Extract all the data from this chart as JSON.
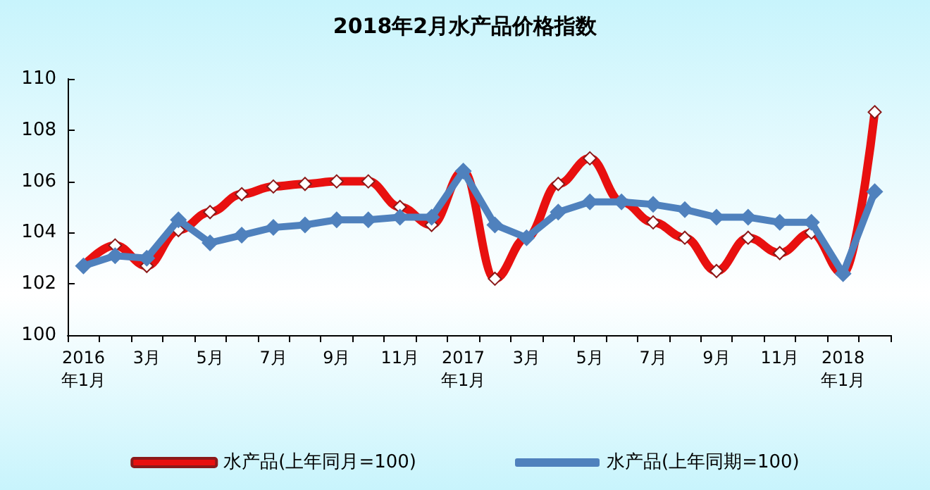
{
  "chart_data": {
    "type": "line",
    "title": "2018年2月水产品价格指数",
    "categories": [
      "2016\n年1月",
      null,
      "3月",
      null,
      "5月",
      null,
      "7月",
      null,
      "9月",
      null,
      "11月",
      null,
      "2017\n年1月",
      null,
      "3月",
      null,
      "5月",
      null,
      "7月",
      null,
      "9月",
      null,
      "11月",
      null,
      "2018\n年1月",
      null
    ],
    "series": [
      {
        "name": "水产品(上年同月=100)",
        "color": "#e8100f",
        "marker": "diamond",
        "values": [
          102.7,
          103.5,
          102.7,
          104.1,
          104.8,
          105.5,
          105.8,
          105.9,
          106.0,
          106.0,
          105.0,
          104.3,
          106.4,
          102.2,
          103.8,
          105.9,
          106.9,
          105.2,
          104.4,
          103.8,
          102.5,
          103.8,
          103.2,
          104.0,
          102.4,
          108.7
        ]
      },
      {
        "name": "水产品(上年同期=100)",
        "color": "#4f81bd",
        "marker": "diamond",
        "values": [
          102.7,
          103.1,
          103.0,
          104.5,
          103.6,
          103.9,
          104.2,
          104.3,
          104.5,
          104.5,
          104.6,
          104.6,
          106.4,
          104.3,
          103.8,
          104.8,
          105.2,
          105.2,
          105.1,
          104.9,
          104.6,
          104.6,
          104.4,
          104.4,
          102.4,
          105.6
        ]
      }
    ],
    "ylim": [
      100,
      110
    ],
    "yticks": [
      100,
      102,
      104,
      106,
      108,
      110
    ],
    "grid": false,
    "legend": "bottom"
  }
}
